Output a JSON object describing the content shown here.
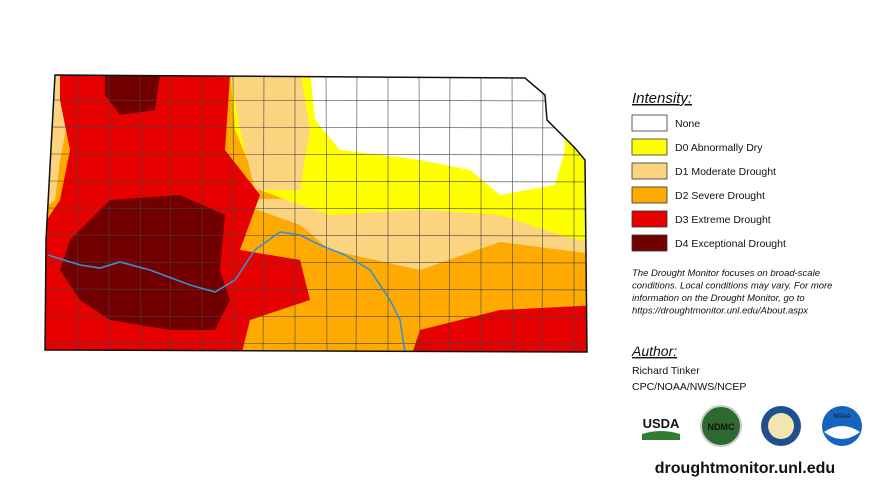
{
  "legend": {
    "title": "Intensity:",
    "items": [
      {
        "label": "None",
        "color": "#ffffff"
      },
      {
        "label": "D0 Abnormally Dry",
        "color": "#ffff00"
      },
      {
        "label": "D1 Moderate Drought",
        "color": "#fcd37f"
      },
      {
        "label": "D2 Severe Drought",
        "color": "#ffaa00"
      },
      {
        "label": "D3 Extreme Drought",
        "color": "#e60000"
      },
      {
        "label": "D4 Exceptional Drought",
        "color": "#730000"
      }
    ]
  },
  "note": [
    "The Drought Monitor focuses on broad-scale",
    "conditions. Local conditions may vary. For more",
    "information on the Drought Monitor, go to",
    "https://droughtmonitor.unl.edu/About.aspx"
  ],
  "author": {
    "title": "Author:",
    "name": "Richard Tinker",
    "org": "CPC/NOAA/NWS/NCEP"
  },
  "logos": [
    "USDA",
    "NDMC",
    "NOAA"
  ],
  "url": "droughtmonitor.unl.edu"
}
